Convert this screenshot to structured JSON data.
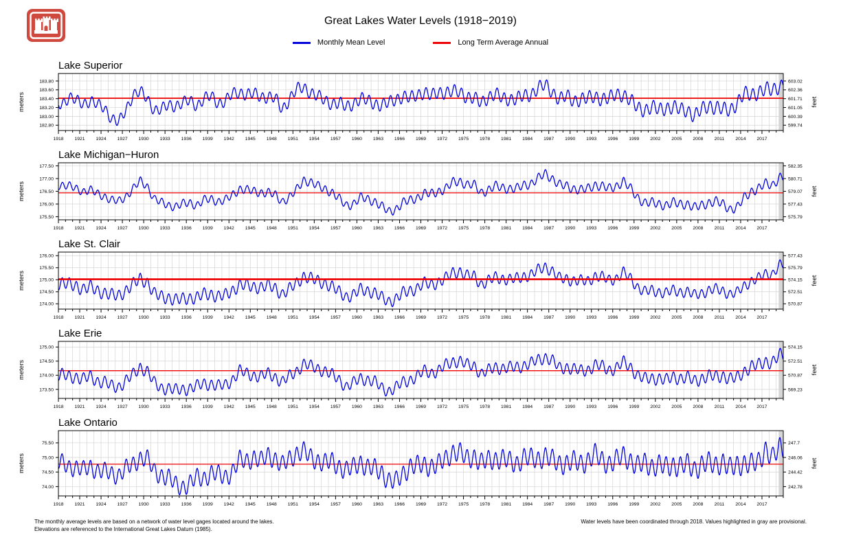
{
  "header": {
    "title": "Great Lakes Water Levels (1918−2019)",
    "logo": "usace-castle-logo",
    "legend": [
      {
        "label": "Monthly Mean Level",
        "color": "#0000dd"
      },
      {
        "label": "Long Term Average Annual",
        "color": "#ee0000"
      }
    ]
  },
  "footer": {
    "left_line1": "The monthly average levels are based on a network of water level gages located around the lakes.",
    "left_line2": "Elevations are referenced to the International Great Lakes Datum (1985).",
    "right_line": "Water levels have been coordinated through 2018. Values highlighted in gray are provisional."
  },
  "colors": {
    "line_blue": "#0000dd",
    "avg_red": "#ee0000",
    "grid": "#d4d4d4",
    "axis": "#000000",
    "provisional_gray": "#d6d6d6",
    "logo_red": "#d0493e"
  },
  "axes": {
    "xmin": 1918,
    "xmax": 2020,
    "x_tick_labels": [
      "1918",
      "1921",
      "1924",
      "1927",
      "1930",
      "1933",
      "1936",
      "1939",
      "1942",
      "1945",
      "1948",
      "1951",
      "1954",
      "1957",
      "1960",
      "1963",
      "1966",
      "1969",
      "1972",
      "1975",
      "1978",
      "1981",
      "1984",
      "1987",
      "1990",
      "1993",
      "1996",
      "1999",
      "2002",
      "2005",
      "2008",
      "2011",
      "2014",
      "2017"
    ],
    "provisional_start": 2019.35
  },
  "chart_data": [
    {
      "type": "line",
      "title": "Lake Superior",
      "ylabel_left": "meters",
      "ylabel_right": "feet",
      "ymin": 182.68,
      "ymax": 183.97,
      "yticks_m": [
        "183.80",
        "183.60",
        "183.40",
        "183.20",
        "183.00",
        "182.80"
      ],
      "yticks_ft": [
        "603.02",
        "602.36",
        "601.71",
        "601.05",
        "600.39",
        "599.74"
      ],
      "average": 183.41,
      "avg_width": 1.8,
      "avg_on_top": false,
      "seasonal_amplitude": 0.13,
      "seasonal_phase": 5,
      "annual_means": [
        183.3,
        183.42,
        183.35,
        183.3,
        183.35,
        183.25,
        183.2,
        182.95,
        182.85,
        183.15,
        183.5,
        183.55,
        183.4,
        183.15,
        183.15,
        183.25,
        183.25,
        183.3,
        183.35,
        183.25,
        183.4,
        183.45,
        183.3,
        183.35,
        183.5,
        183.55,
        183.5,
        183.5,
        183.45,
        183.45,
        183.4,
        183.15,
        183.4,
        183.6,
        183.65,
        183.55,
        183.45,
        183.35,
        183.3,
        183.3,
        183.2,
        183.3,
        183.4,
        183.35,
        183.3,
        183.25,
        183.3,
        183.4,
        183.45,
        183.4,
        183.5,
        183.55,
        183.45,
        183.55,
        183.55,
        183.55,
        183.55,
        183.45,
        183.4,
        183.3,
        183.45,
        183.5,
        183.4,
        183.4,
        183.4,
        183.45,
        183.5,
        183.65,
        183.7,
        183.55,
        183.4,
        183.45,
        183.35,
        183.4,
        183.4,
        183.45,
        183.4,
        183.4,
        183.5,
        183.5,
        183.35,
        183.2,
        183.15,
        183.2,
        183.15,
        183.2,
        183.2,
        183.15,
        183.15,
        183.0,
        183.15,
        183.25,
        183.2,
        183.15,
        183.15,
        183.3,
        183.5,
        183.5,
        183.55,
        183.6,
        183.6,
        183.7
      ]
    },
    {
      "type": "line",
      "title": "Lake Michigan−Huron",
      "ylabel_left": "meters",
      "ylabel_right": "feet",
      "ymin": 175.38,
      "ymax": 177.62,
      "yticks_m": [
        "177.50",
        "177.00",
        "176.50",
        "176.00",
        "175.50"
      ],
      "yticks_ft": [
        "582.35",
        "580.71",
        "579.07",
        "577.43",
        "575.79"
      ],
      "average": 176.44,
      "avg_width": 1.2,
      "avg_on_top": false,
      "seasonal_amplitude": 0.14,
      "seasonal_phase": 3,
      "annual_means": [
        176.75,
        176.7,
        176.6,
        176.5,
        176.55,
        176.4,
        176.3,
        176.15,
        176.1,
        176.3,
        176.6,
        176.9,
        176.7,
        176.2,
        176.05,
        175.95,
        175.9,
        176.0,
        176.05,
        175.95,
        176.15,
        176.2,
        176.1,
        176.15,
        176.35,
        176.6,
        176.55,
        176.5,
        176.45,
        176.45,
        176.35,
        176.1,
        176.25,
        176.55,
        176.95,
        176.85,
        176.7,
        176.6,
        176.45,
        176.2,
        175.95,
        176.0,
        176.25,
        176.2,
        176.1,
        175.9,
        175.7,
        175.8,
        176.05,
        176.15,
        176.25,
        176.4,
        176.4,
        176.5,
        176.6,
        176.85,
        176.9,
        176.75,
        176.75,
        176.45,
        176.55,
        176.7,
        176.65,
        176.6,
        176.6,
        176.75,
        176.8,
        177.0,
        177.2,
        177.0,
        176.75,
        176.7,
        176.6,
        176.55,
        176.6,
        176.75,
        176.7,
        176.6,
        176.7,
        176.9,
        176.6,
        176.25,
        176.05,
        176.05,
        176.0,
        175.95,
        176.05,
        176.0,
        176.0,
        175.85,
        175.95,
        176.05,
        176.1,
        176.0,
        175.8,
        175.85,
        176.25,
        176.5,
        176.6,
        176.8,
        176.75,
        177.05
      ]
    },
    {
      "type": "line",
      "title": "Lake St. Clair",
      "ylabel_left": "meters",
      "ylabel_right": "feet",
      "ymin": 173.78,
      "ymax": 176.15,
      "yticks_m": [
        "176.00",
        "175.50",
        "175.00",
        "174.50",
        "174.00"
      ],
      "yticks_ft": [
        "577.43",
        "575.79",
        "574.15",
        "572.51",
        "570.87"
      ],
      "average": 175.02,
      "avg_width": 2.6,
      "avg_on_top": true,
      "seasonal_amplitude": 0.2,
      "seasonal_phase": 3,
      "annual_means": [
        174.85,
        174.8,
        174.75,
        174.6,
        174.7,
        174.55,
        174.45,
        174.35,
        174.35,
        174.55,
        174.8,
        175.05,
        174.9,
        174.4,
        174.3,
        174.25,
        174.15,
        174.2,
        174.25,
        174.25,
        174.4,
        174.4,
        174.3,
        174.35,
        174.55,
        174.8,
        174.75,
        174.7,
        174.7,
        174.75,
        174.65,
        174.4,
        174.6,
        174.85,
        175.15,
        175.05,
        174.95,
        174.85,
        174.7,
        174.5,
        174.3,
        174.35,
        174.6,
        174.55,
        174.45,
        174.25,
        174.1,
        174.2,
        174.45,
        174.55,
        174.65,
        174.85,
        174.8,
        174.9,
        175.05,
        175.3,
        175.35,
        175.15,
        175.15,
        174.8,
        174.95,
        175.1,
        175.05,
        175.0,
        175.05,
        175.15,
        175.2,
        175.4,
        175.55,
        175.35,
        175.05,
        175.05,
        174.95,
        174.95,
        174.95,
        175.15,
        175.1,
        175.0,
        175.05,
        175.3,
        175.05,
        174.7,
        174.5,
        174.55,
        174.5,
        174.45,
        174.55,
        174.5,
        174.5,
        174.35,
        174.45,
        174.55,
        174.6,
        174.55,
        174.4,
        174.45,
        174.75,
        174.95,
        175.05,
        175.25,
        175.25,
        175.6
      ]
    },
    {
      "type": "line",
      "title": "Lake Erie",
      "ylabel_left": "meters",
      "ylabel_right": "feet",
      "ymin": 173.18,
      "ymax": 175.2,
      "yticks_m": [
        "175.00",
        "174.50",
        "174.00",
        "173.50"
      ],
      "yticks_ft": [
        "574.15",
        "572.51",
        "570.87",
        "569.23"
      ],
      "average": 174.16,
      "avg_width": 1.4,
      "avg_on_top": false,
      "seasonal_amplitude": 0.22,
      "seasonal_phase": 3,
      "annual_means": [
        174.0,
        173.95,
        173.95,
        173.85,
        173.95,
        173.8,
        173.75,
        173.6,
        173.6,
        173.8,
        174.0,
        174.3,
        174.15,
        173.7,
        173.55,
        173.55,
        173.45,
        173.5,
        173.55,
        173.6,
        173.7,
        173.7,
        173.6,
        173.65,
        173.85,
        174.15,
        174.05,
        174.0,
        173.95,
        174.05,
        173.95,
        173.75,
        173.95,
        174.15,
        174.4,
        174.3,
        174.25,
        174.15,
        174.0,
        173.85,
        173.6,
        173.7,
        173.9,
        173.85,
        173.75,
        173.55,
        173.45,
        173.55,
        173.75,
        173.85,
        173.95,
        174.15,
        174.1,
        174.15,
        174.35,
        174.5,
        174.5,
        174.35,
        174.35,
        174.05,
        174.15,
        174.3,
        174.25,
        174.25,
        174.3,
        174.35,
        174.4,
        174.55,
        174.65,
        174.5,
        174.25,
        174.3,
        174.2,
        174.15,
        174.2,
        174.35,
        174.3,
        174.2,
        174.25,
        174.45,
        174.3,
        174.0,
        173.85,
        173.9,
        173.9,
        173.8,
        173.95,
        173.9,
        173.9,
        173.8,
        173.9,
        173.95,
        173.95,
        174.0,
        173.85,
        173.9,
        174.15,
        174.3,
        174.35,
        174.5,
        174.45,
        174.7
      ]
    },
    {
      "type": "line",
      "title": "Lake Ontario",
      "ylabel_left": "meters",
      "ylabel_right": "feet",
      "ymin": 73.68,
      "ymax": 75.92,
      "yticks_m": [
        "75.50",
        "75.00",
        "74.50",
        "74.00"
      ],
      "yticks_ft": [
        "247.7",
        "246.06",
        "244.42",
        "242.78"
      ],
      "average": 74.77,
      "avg_width": 1.2,
      "avg_on_top": false,
      "seasonal_amplitude": 0.28,
      "seasonal_phase": 2.5,
      "annual_means": [
        74.8,
        74.7,
        74.65,
        74.55,
        74.7,
        74.55,
        74.5,
        74.45,
        74.4,
        74.6,
        74.75,
        75.0,
        74.95,
        74.5,
        74.4,
        74.3,
        74.05,
        74.0,
        74.1,
        74.3,
        74.3,
        74.45,
        74.4,
        74.35,
        74.5,
        74.9,
        74.9,
        75.0,
        74.85,
        75.1,
        74.95,
        74.7,
        74.95,
        75.15,
        75.2,
        75.0,
        74.9,
        74.8,
        74.85,
        74.7,
        74.55,
        74.65,
        74.85,
        74.65,
        74.6,
        74.5,
        74.2,
        74.15,
        74.45,
        74.7,
        74.7,
        74.75,
        74.7,
        74.75,
        74.95,
        75.2,
        75.15,
        74.95,
        75.05,
        74.8,
        74.9,
        74.95,
        74.95,
        74.85,
        74.8,
        75.0,
        74.95,
        74.95,
        75.05,
        74.9,
        74.8,
        74.8,
        74.85,
        74.8,
        74.9,
        75.1,
        74.9,
        74.8,
        74.9,
        75.05,
        74.9,
        74.7,
        74.8,
        74.7,
        74.75,
        74.65,
        74.75,
        74.7,
        74.75,
        74.6,
        74.75,
        74.8,
        74.75,
        74.85,
        74.6,
        74.75,
        74.8,
        74.75,
        74.85,
        75.3,
        74.95,
        75.35
      ]
    }
  ]
}
